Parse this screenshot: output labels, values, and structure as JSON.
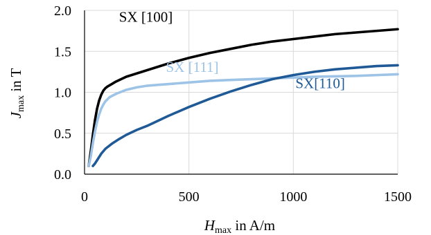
{
  "chart_data": {
    "type": "line",
    "xlabel": {
      "main": "H",
      "sub": "max",
      "rest": " in A/m"
    },
    "ylabel": {
      "main": "J",
      "sub": "max",
      "rest": " in T"
    },
    "xlim": [
      0,
      1500
    ],
    "ylim": [
      0,
      2.0
    ],
    "xticks": [
      "0",
      "500",
      "1000",
      "1500"
    ],
    "yticks": [
      "0.0",
      "0.5",
      "1.0",
      "1.5",
      "2.0"
    ],
    "grid": true,
    "series": [
      {
        "name": "SX [100]",
        "color": "#000000",
        "x": [
          20,
          30,
          40,
          50,
          60,
          70,
          80,
          90,
          100,
          110,
          130,
          150,
          200,
          250,
          300,
          400,
          500,
          600,
          700,
          800,
          900,
          1000,
          1100,
          1200,
          1300,
          1400,
          1500
        ],
        "y": [
          0.1,
          0.28,
          0.48,
          0.66,
          0.8,
          0.9,
          0.97,
          1.02,
          1.05,
          1.07,
          1.1,
          1.13,
          1.19,
          1.23,
          1.27,
          1.35,
          1.42,
          1.48,
          1.53,
          1.58,
          1.62,
          1.65,
          1.68,
          1.71,
          1.73,
          1.75,
          1.77
        ]
      },
      {
        "name": "SX [111]",
        "color": "#9dc3e6",
        "x": [
          20,
          30,
          40,
          50,
          60,
          70,
          80,
          90,
          100,
          120,
          150,
          200,
          250,
          300,
          350,
          400,
          500,
          600,
          700,
          800,
          900,
          1000,
          1100,
          1200,
          1300,
          1400,
          1500
        ],
        "y": [
          0.1,
          0.22,
          0.38,
          0.52,
          0.64,
          0.73,
          0.8,
          0.85,
          0.89,
          0.94,
          0.98,
          1.03,
          1.06,
          1.08,
          1.09,
          1.1,
          1.12,
          1.14,
          1.15,
          1.16,
          1.17,
          1.18,
          1.19,
          1.195,
          1.2,
          1.21,
          1.22
        ]
      },
      {
        "name": "SX[110]",
        "color": "#1f5a96",
        "x": [
          40,
          50,
          60,
          80,
          100,
          130,
          160,
          200,
          250,
          300,
          400,
          500,
          600,
          700,
          800,
          900,
          1000,
          1100,
          1200,
          1300,
          1400,
          1500
        ],
        "y": [
          0.1,
          0.13,
          0.17,
          0.25,
          0.31,
          0.37,
          0.42,
          0.48,
          0.54,
          0.59,
          0.71,
          0.82,
          0.92,
          1.01,
          1.09,
          1.16,
          1.21,
          1.25,
          1.28,
          1.3,
          1.32,
          1.33
        ]
      }
    ],
    "annotations": [
      {
        "text": "SX [100]",
        "x": 165,
        "y": 1.86,
        "color": "#000000",
        "anchor": "start"
      },
      {
        "text": "SX [111]",
        "x": 390,
        "y": 1.25,
        "color": "#9dc3e6",
        "anchor": "start"
      },
      {
        "text": "SX[110]",
        "x": 1010,
        "y": 1.05,
        "color": "#1f5a96",
        "anchor": "start"
      }
    ]
  }
}
